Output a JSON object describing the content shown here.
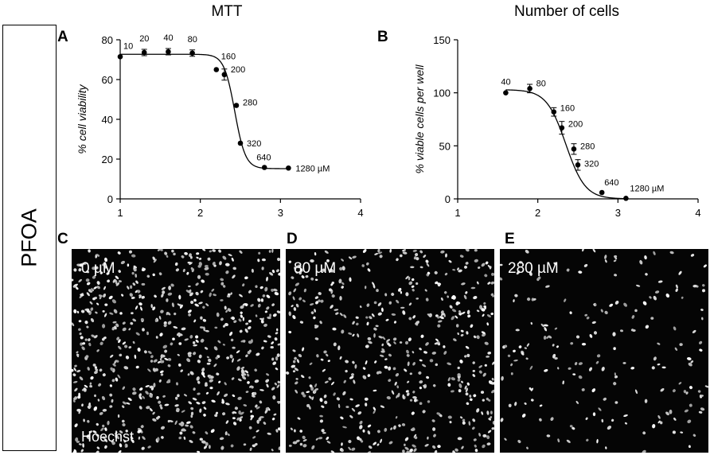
{
  "side_label": "PFOA",
  "column_titles": {
    "left": "MTT",
    "right": "Number of cells"
  },
  "panel_letters": {
    "a": "A",
    "b": "B",
    "c": "C",
    "d": "D",
    "e": "E"
  },
  "chart_data": [
    {
      "type": "scatter",
      "panel": "A",
      "title": "MTT",
      "ylabel": "% cell viability",
      "xlabel": "",
      "xlim": [
        1,
        4
      ],
      "ylim": [
        0,
        80
      ],
      "xticks": [
        "1",
        "2",
        "3",
        "4"
      ],
      "yticks": [
        "0",
        "20",
        "40",
        "60",
        "80"
      ],
      "fit_curve": {
        "top": 72.7,
        "bottom": 15.2,
        "log_ic50": 2.43,
        "hill": 6.5
      },
      "points": [
        {
          "x": 1.0,
          "y": 71.5,
          "err": 0,
          "label": "10"
        },
        {
          "x": 1.3,
          "y": 73.6,
          "err": 1.6,
          "label": "20"
        },
        {
          "x": 1.6,
          "y": 74.0,
          "err": 1.6,
          "label": "40"
        },
        {
          "x": 1.9,
          "y": 73.3,
          "err": 1.6,
          "label": "80"
        },
        {
          "x": 2.2,
          "y": 65.0,
          "err": 0,
          "label": "160"
        },
        {
          "x": 2.3,
          "y": 62.5,
          "err": 2.8,
          "label": "200"
        },
        {
          "x": 2.45,
          "y": 47.0,
          "err": 0,
          "label": "280"
        },
        {
          "x": 2.5,
          "y": 28.0,
          "err": 0,
          "label": "320"
        },
        {
          "x": 2.8,
          "y": 15.8,
          "err": 0,
          "label": "640"
        },
        {
          "x": 3.1,
          "y": 15.5,
          "err": 0,
          "label": "1280 µM"
        }
      ]
    },
    {
      "type": "scatter",
      "panel": "B",
      "title": "Number of cells",
      "ylabel": "% viable cells per well",
      "xlabel": "",
      "xlim": [
        1,
        4
      ],
      "ylim": [
        0,
        150
      ],
      "xticks": [
        "1",
        "2",
        "3",
        "4"
      ],
      "yticks": [
        "0",
        "50",
        "100",
        "150"
      ],
      "fit_curve": {
        "top": 103,
        "bottom": 0,
        "log_ic50": 2.35,
        "hill": 3.6
      },
      "points": [
        {
          "x": 1.6,
          "y": 100.0,
          "err": 0,
          "label": "40"
        },
        {
          "x": 1.9,
          "y": 104.0,
          "err": 4.0,
          "label": "80"
        },
        {
          "x": 2.2,
          "y": 82.0,
          "err": 4.0,
          "label": "160"
        },
        {
          "x": 2.3,
          "y": 67.0,
          "err": 6.0,
          "label": "200"
        },
        {
          "x": 2.45,
          "y": 47.0,
          "err": 5.0,
          "label": "280"
        },
        {
          "x": 2.5,
          "y": 32.0,
          "err": 5.0,
          "label": "320"
        },
        {
          "x": 2.8,
          "y": 6.0,
          "err": 0,
          "label": "640"
        },
        {
          "x": 3.1,
          "y": 0.5,
          "err": 0,
          "label": "1280 µM"
        }
      ]
    }
  ],
  "micrographs": [
    {
      "panel": "C",
      "concentration": "0 µM",
      "stain": "Hoechst",
      "cell_density": 700
    },
    {
      "panel": "D",
      "concentration": "80 µM",
      "stain": "",
      "cell_density": 520
    },
    {
      "panel": "E",
      "concentration": "280 µM",
      "stain": "",
      "cell_density": 200
    }
  ]
}
